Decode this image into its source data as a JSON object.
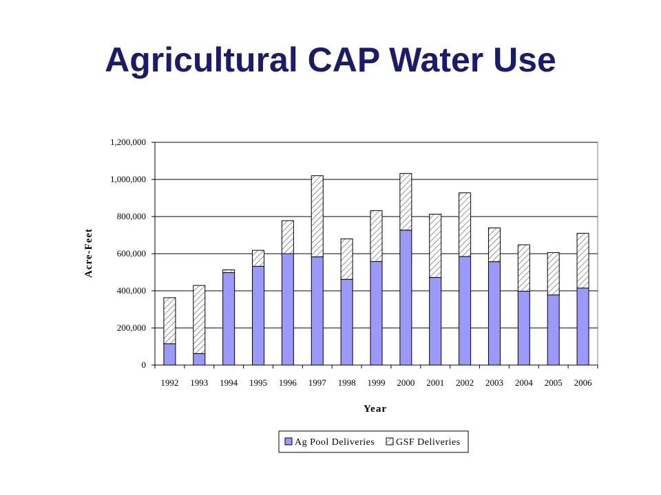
{
  "title": "Agricultural CAP Water Use",
  "chart_data": {
    "type": "bar",
    "stacked": true,
    "categories": [
      "1992",
      "1993",
      "1994",
      "1995",
      "1996",
      "1997",
      "1998",
      "1999",
      "2000",
      "2001",
      "2002",
      "2003",
      "2004",
      "2005",
      "2006"
    ],
    "series": [
      {
        "name": "Ag Pool Deliveries",
        "values": [
          115000,
          62000,
          498000,
          532000,
          600000,
          583000,
          462000,
          558000,
          727000,
          472000,
          585000,
          557000,
          398000,
          378000,
          415000
        ],
        "color": "#9999ff",
        "pattern": "solid"
      },
      {
        "name": "GSF Deliveries",
        "values": [
          248000,
          367000,
          15000,
          86000,
          178000,
          437000,
          218000,
          274000,
          305000,
          341000,
          343000,
          182000,
          250000,
          228000,
          295000
        ],
        "color": "#ffffff",
        "pattern": "diagonal-hatch"
      }
    ],
    "xlabel": "Year",
    "ylabel": "Acre-Feet",
    "ylim": [
      0,
      1200000
    ],
    "yticks": [
      0,
      200000,
      400000,
      600000,
      800000,
      1000000,
      1200000
    ],
    "ytick_labels": [
      "0",
      "200,000",
      "400,000",
      "600,000",
      "800,000",
      "1,000,000",
      "1,200,000"
    ],
    "grid": true,
    "legend_position": "bottom"
  }
}
